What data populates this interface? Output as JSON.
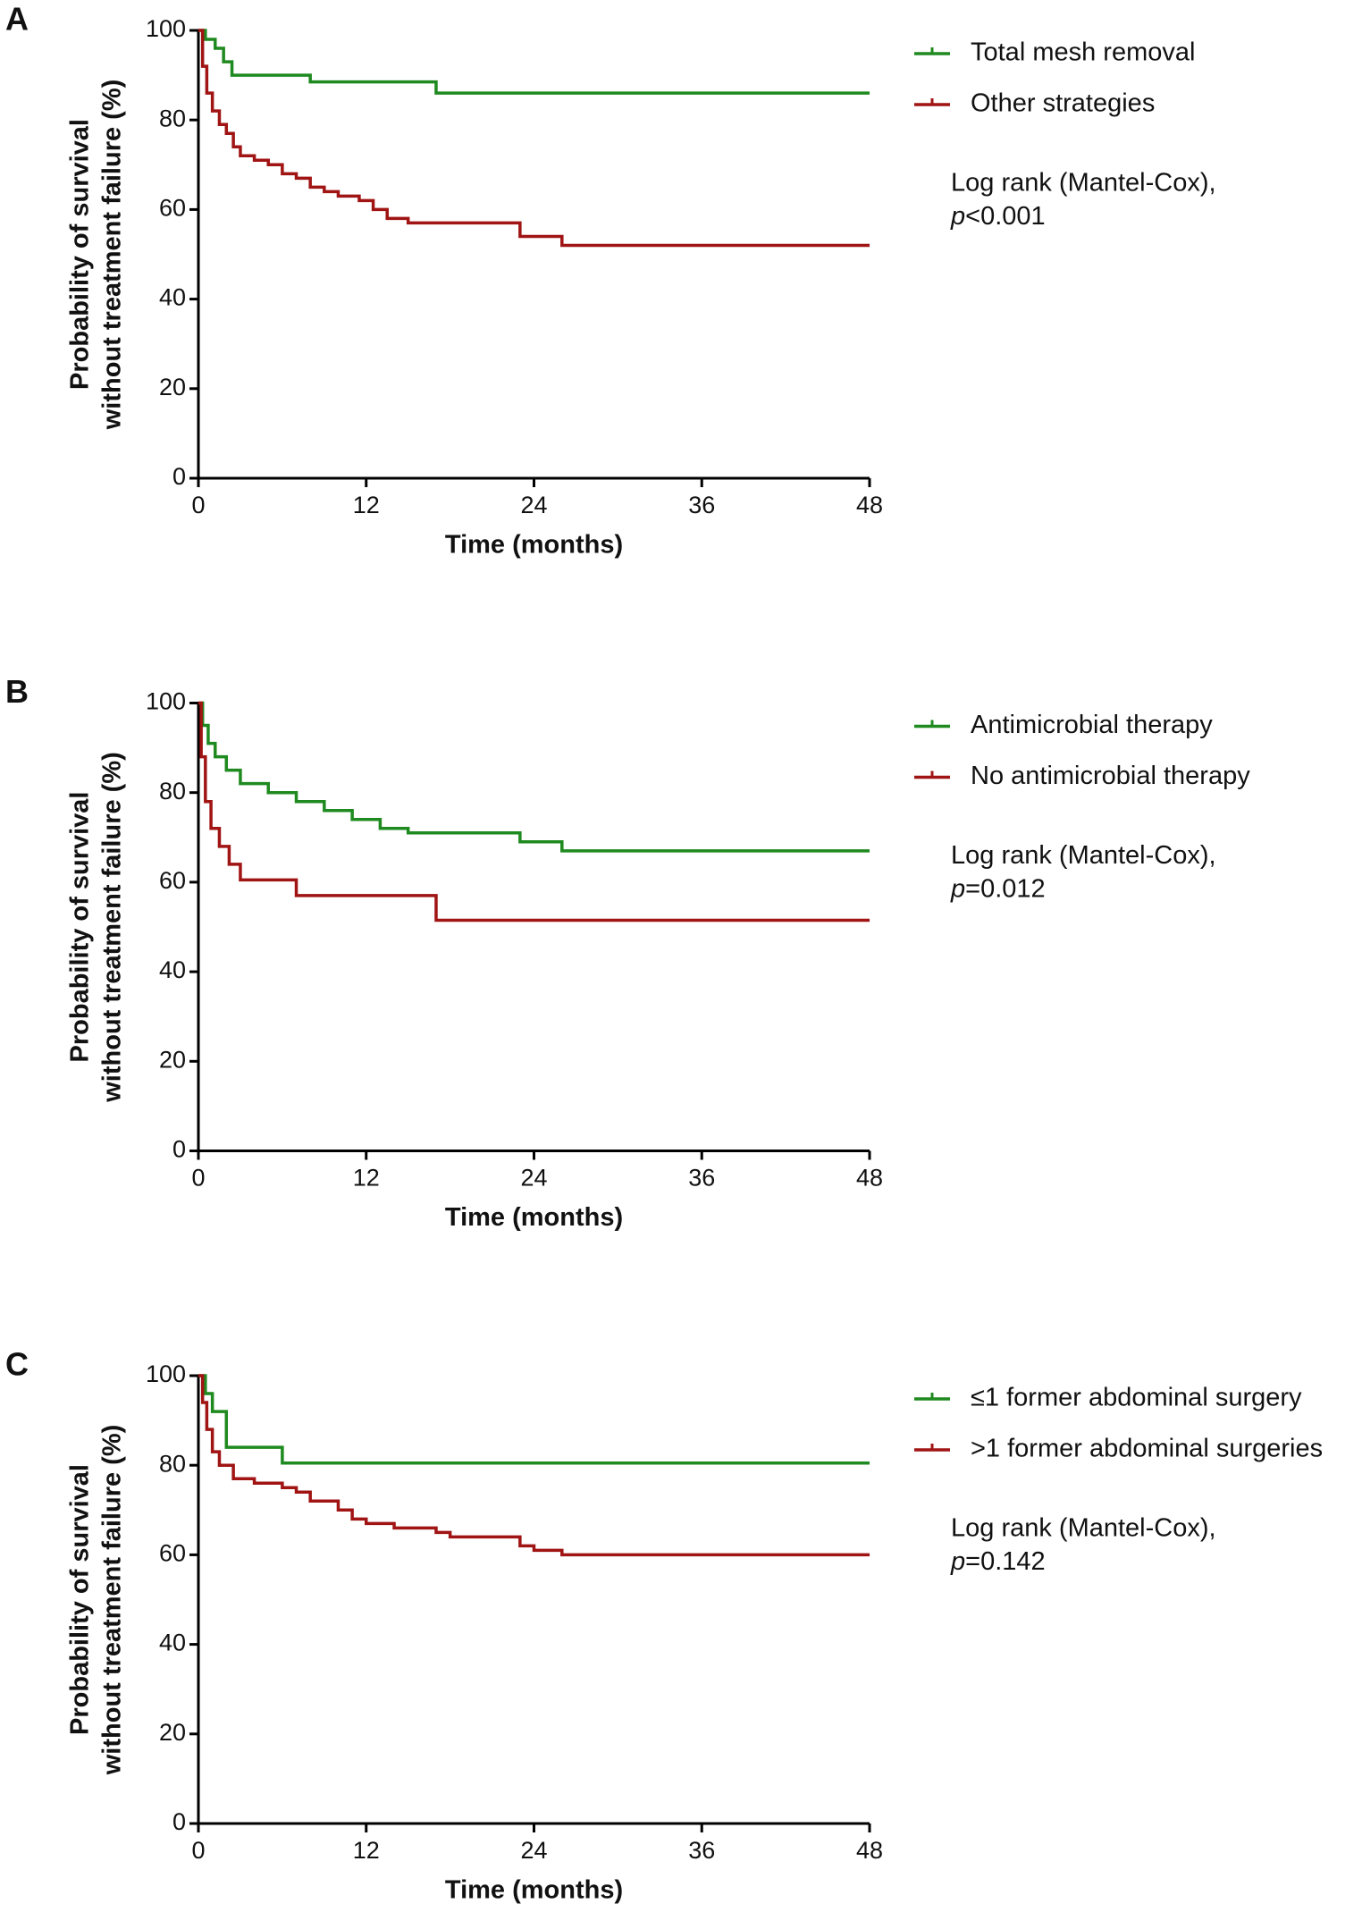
{
  "chart_data": [
    {
      "type": "line",
      "panel": "A",
      "ylabel": [
        "Probability of survival",
        "without treatment failure (%)"
      ],
      "xlabel": "Time (months)",
      "xlim": [
        0,
        48
      ],
      "xticks": [
        0,
        12,
        24,
        36,
        48
      ],
      "ylim": [
        0,
        100
      ],
      "yticks": [
        0,
        20,
        40,
        60,
        80,
        100
      ],
      "annotation": "Log rank (Mantel-Cox),",
      "p_symbol": "p",
      "p_value": "<0.001",
      "series": [
        {
          "name": "Total mesh removal",
          "color": "#1f8a1f",
          "x": [
            0,
            0.5,
            0.5,
            1.2,
            1.2,
            1.8,
            1.8,
            2.4,
            2.4,
            8,
            8,
            17,
            17,
            48
          ],
          "values": [
            100,
            100,
            98,
            98,
            96,
            96,
            93,
            93,
            90,
            90,
            88.5,
            88.5,
            86,
            86
          ]
        },
        {
          "name": "Other strategies",
          "color": "#a01414",
          "x": [
            0,
            0.3,
            0.3,
            0.6,
            0.6,
            1,
            1,
            1.5,
            1.5,
            2,
            2,
            2.5,
            2.5,
            3,
            3,
            4,
            4,
            5,
            5,
            6,
            6,
            7,
            7,
            8,
            8,
            9,
            9,
            10,
            10,
            11.5,
            11.5,
            12.5,
            12.5,
            13.5,
            13.5,
            15,
            15,
            23,
            23,
            26,
            26,
            48
          ],
          "values": [
            100,
            100,
            92,
            92,
            86,
            86,
            82,
            82,
            79,
            79,
            77,
            77,
            74,
            74,
            72,
            72,
            71,
            71,
            70,
            70,
            68,
            68,
            67,
            67,
            65,
            65,
            64,
            64,
            63,
            63,
            62,
            62,
            60,
            60,
            58,
            58,
            57,
            57,
            54,
            54,
            52,
            52
          ]
        }
      ]
    },
    {
      "type": "line",
      "panel": "B",
      "ylabel": [
        "Probability of survival",
        "without treatment failure (%)"
      ],
      "xlabel": "Time (months)",
      "xlim": [
        0,
        48
      ],
      "xticks": [
        0,
        12,
        24,
        36,
        48
      ],
      "ylim": [
        0,
        100
      ],
      "yticks": [
        0,
        20,
        40,
        60,
        80,
        100
      ],
      "annotation": "Log rank (Mantel-Cox),",
      "p_symbol": "p",
      "p_value": "=0.012",
      "series": [
        {
          "name": "Antimicrobial therapy",
          "color": "#1f8a1f",
          "x": [
            0,
            0.3,
            0.3,
            0.7,
            0.7,
            1.2,
            1.2,
            2,
            2,
            3,
            3,
            5,
            5,
            7,
            7,
            9,
            9,
            11,
            11,
            13,
            13,
            15,
            15,
            23,
            23,
            26,
            26,
            48
          ],
          "values": [
            100,
            100,
            95,
            95,
            91,
            91,
            88,
            88,
            85,
            85,
            82,
            82,
            80,
            80,
            78,
            78,
            76,
            76,
            74,
            74,
            72,
            72,
            71,
            71,
            69,
            69,
            67,
            67
          ]
        },
        {
          "name": "No antimicrobial therapy",
          "color": "#a01414",
          "x": [
            0,
            0.2,
            0.2,
            0.5,
            0.5,
            0.9,
            0.9,
            1.5,
            1.5,
            2.2,
            2.2,
            3,
            3,
            7,
            7,
            17,
            17,
            48
          ],
          "values": [
            100,
            100,
            88,
            88,
            78,
            78,
            72,
            72,
            68,
            68,
            64,
            64,
            60.5,
            60.5,
            57,
            57,
            51.5,
            51.5
          ]
        }
      ]
    },
    {
      "type": "line",
      "panel": "C",
      "ylabel": [
        "Probability of survival",
        "without treatment failure (%)"
      ],
      "xlabel": "Time (months)",
      "xlim": [
        0,
        48
      ],
      "xticks": [
        0,
        12,
        24,
        36,
        48
      ],
      "ylim": [
        0,
        100
      ],
      "yticks": [
        0,
        20,
        40,
        60,
        80,
        100
      ],
      "annotation": "Log rank (Mantel-Cox),",
      "p_symbol": "p",
      "p_value": "=0.142",
      "series": [
        {
          "name": "≤1 former abdominal surgery",
          "color": "#1f8a1f",
          "x": [
            0,
            0.5,
            0.5,
            1,
            1,
            2,
            2,
            6,
            6,
            48
          ],
          "values": [
            100,
            100,
            96,
            96,
            92,
            92,
            84,
            84,
            80.5,
            80.5
          ]
        },
        {
          "name": ">1 former abdominal surgeries",
          "color": "#a01414",
          "x": [
            0,
            0.3,
            0.3,
            0.6,
            0.6,
            1,
            1,
            1.5,
            1.5,
            2.5,
            2.5,
            4,
            4,
            6,
            6,
            7,
            7,
            8,
            8,
            10,
            10,
            11,
            11,
            12,
            12,
            14,
            14,
            17,
            17,
            18,
            18,
            23,
            23,
            24,
            24,
            26,
            26,
            48
          ],
          "values": [
            100,
            100,
            94,
            94,
            88,
            88,
            83,
            83,
            80,
            80,
            77,
            77,
            76,
            76,
            75,
            75,
            74,
            74,
            72,
            72,
            70,
            70,
            68,
            68,
            67,
            67,
            66,
            66,
            65,
            65,
            64,
            64,
            62,
            62,
            61,
            61,
            60,
            60
          ]
        }
      ]
    }
  ]
}
